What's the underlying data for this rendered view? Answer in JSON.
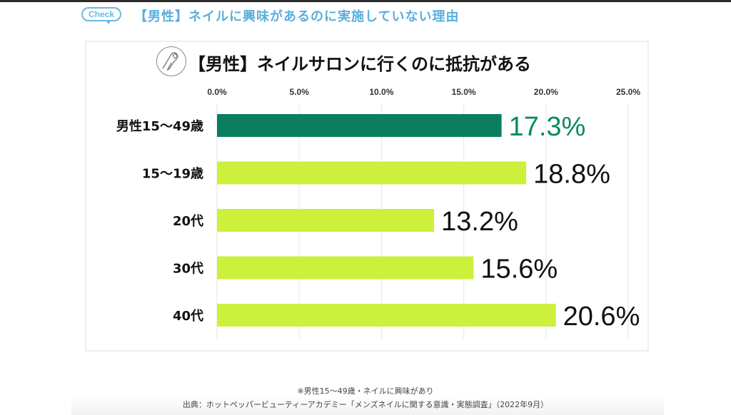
{
  "header": {
    "badge_label": "Check",
    "heading": "【男性】ネイルに興味があるのに実施していない理由"
  },
  "chart_data": {
    "type": "bar",
    "orientation": "horizontal",
    "title": "【男性】ネイルサロンに行くのに抵抗がある",
    "categories": [
      "男性15〜49歳",
      "15〜19歳",
      "20代",
      "30代",
      "40代"
    ],
    "values": [
      17.3,
      18.8,
      13.2,
      15.6,
      20.6
    ],
    "value_labels": [
      "17.3%",
      "18.8%",
      "13.2%",
      "15.6%",
      "20.6%"
    ],
    "xlim": [
      0,
      25
    ],
    "xticks": [
      0,
      5,
      10,
      15,
      20,
      25
    ],
    "xtick_labels": [
      "0.0%",
      "5.0%",
      "10.0%",
      "15.0%",
      "20.0%",
      "25.0%"
    ],
    "grid": true,
    "colors": {
      "highlight": "#0a7e5f",
      "default": "#cdf03c",
      "highlight_label": "#0a8a63",
      "default_label": "#111111"
    },
    "xlabel": "",
    "ylabel": ""
  },
  "icons": {
    "title_icon": "nail-finger-icon"
  },
  "footer": {
    "note": "※男性15〜49歳・ネイルに興味があり",
    "source": "出典：ホットペッパービューティーアカデミー「メンズネイルに関する意識・実態調査」（2022年9月）"
  }
}
